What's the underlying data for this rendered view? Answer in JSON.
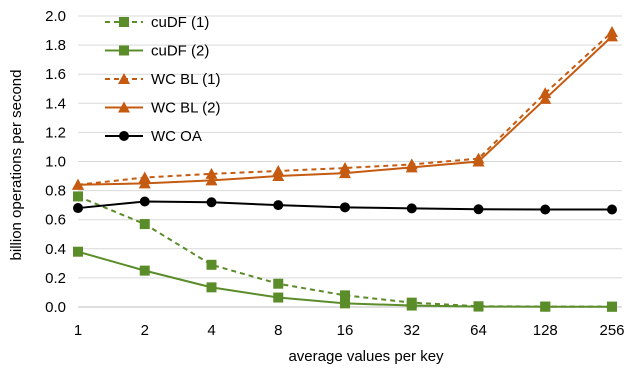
{
  "chart_data": {
    "type": "line",
    "xlabel": "average values per key",
    "ylabel": "billion operations per second",
    "categories": [
      "1",
      "2",
      "4",
      "8",
      "16",
      "32",
      "64",
      "128",
      "256"
    ],
    "ylim": [
      0,
      2.0
    ],
    "yticks": [
      "0.0",
      "0.2",
      "0.4",
      "0.6",
      "0.8",
      "1.0",
      "1.2",
      "1.4",
      "1.6",
      "1.8",
      "2.0"
    ],
    "grid": "horizontal",
    "legend": "top-left",
    "series": [
      {
        "name": "cuDF (1)",
        "color": "#5B8C2A",
        "dash": true,
        "marker": "square",
        "values": [
          0.76,
          0.57,
          0.29,
          0.16,
          0.08,
          0.03,
          0.005,
          0.003,
          0.002
        ]
      },
      {
        "name": "cuDF (2)",
        "color": "#5B8C2A",
        "dash": false,
        "marker": "square",
        "values": [
          0.38,
          0.25,
          0.135,
          0.065,
          0.025,
          0.01,
          0.003,
          0.002,
          0.002
        ]
      },
      {
        "name": "WC BL (1)",
        "color": "#C55A11",
        "dash": true,
        "marker": "triangle",
        "values": [
          0.84,
          0.89,
          0.915,
          0.935,
          0.955,
          0.98,
          1.02,
          1.47,
          1.89
        ]
      },
      {
        "name": "WC BL (2)",
        "color": "#C55A11",
        "dash": false,
        "marker": "triangle",
        "values": [
          0.84,
          0.85,
          0.87,
          0.9,
          0.92,
          0.96,
          1.0,
          1.43,
          1.86
        ]
      },
      {
        "name": "WC OA",
        "color": "#000000",
        "dash": false,
        "marker": "circle",
        "values": [
          0.68,
          0.725,
          0.72,
          0.7,
          0.685,
          0.678,
          0.672,
          0.67,
          0.67
        ]
      }
    ]
  }
}
